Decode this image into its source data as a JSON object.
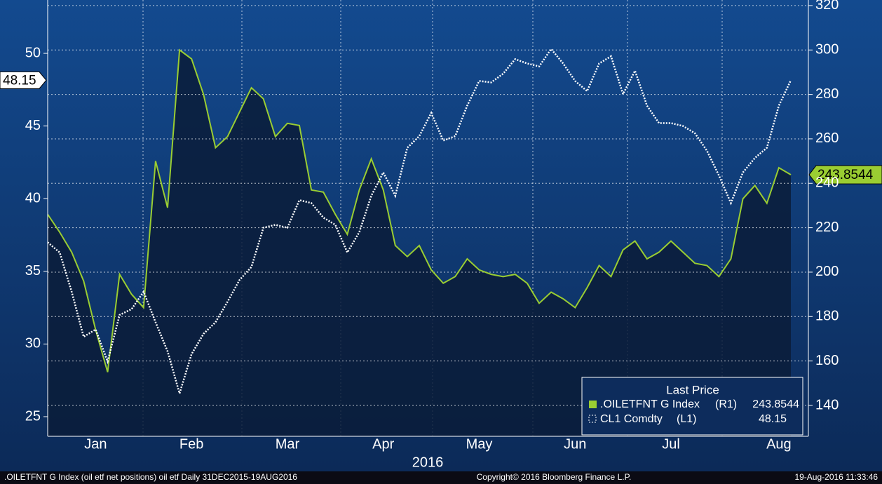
{
  "chart_data": {
    "type": "line",
    "x_label": "2016",
    "categories": [
      null,
      null,
      null,
      null,
      "Jan",
      null,
      null,
      null,
      null,
      null,
      null,
      null,
      "Feb",
      null,
      null,
      null,
      null,
      null,
      null,
      null,
      "Mar",
      null,
      null,
      null,
      null,
      null,
      null,
      null,
      "Apr",
      null,
      null,
      null,
      null,
      null,
      null,
      null,
      "May",
      null,
      null,
      null,
      null,
      null,
      null,
      null,
      "Jun",
      null,
      null,
      null,
      null,
      null,
      null,
      null,
      "Jul",
      null,
      null,
      null,
      null,
      null,
      null,
      null,
      null,
      "Aug",
      null
    ],
    "series": [
      {
        "name": "CL1 Comdty",
        "tag": "(L1)",
        "color": "#ffffff",
        "axis": "y",
        "values": [
          37.0,
          36.3,
          33.6,
          30.5,
          31.0,
          28.8,
          32.0,
          32.4,
          33.6,
          31.5,
          29.5,
          26.6,
          29.3,
          30.7,
          31.5,
          32.9,
          34.4,
          35.3,
          38.0,
          38.2,
          38.0,
          39.9,
          39.7,
          38.7,
          38.2,
          36.3,
          37.7,
          40.2,
          41.8,
          40.2,
          43.5,
          44.3,
          45.9,
          44.0,
          44.3,
          46.4,
          48.1,
          48.0,
          48.6,
          49.6,
          49.3,
          49.1,
          50.3,
          49.3,
          48.1,
          47.4,
          49.3,
          49.8,
          47.2,
          48.8,
          46.4,
          45.2,
          45.2,
          45.0,
          44.5,
          43.3,
          41.6,
          39.7,
          41.8,
          42.8,
          43.5,
          46.4,
          48.15
        ]
      },
      {
        "name": ".OILETFNT G Index",
        "tag": "(R1)",
        "color": "#9acd32",
        "axis": "y2",
        "values": [
          226,
          218,
          209,
          196,
          174,
          155,
          199,
          190,
          184,
          250,
          229,
          300,
          296,
          280,
          256,
          261,
          272,
          283,
          278,
          261,
          267,
          266,
          237,
          236,
          226,
          217,
          237,
          251,
          237,
          212,
          207,
          212,
          201,
          195,
          198,
          206,
          201,
          199,
          198,
          199,
          195,
          186,
          191,
          188,
          184,
          193,
          203,
          198,
          210,
          214,
          206,
          209,
          214,
          209,
          204,
          203,
          198,
          206,
          233,
          239,
          231,
          247,
          243.8544
        ]
      }
    ],
    "ylim": [
      23.65,
      53.67
    ],
    "yticks": [
      25,
      30,
      35,
      40,
      45,
      50
    ],
    "y2lim": [
      126.1,
      322.5
    ],
    "y2ticks": [
      140,
      160,
      180,
      200,
      220,
      240,
      260,
      280,
      300,
      320
    ],
    "grid": true,
    "legend": {
      "title": "Last Price",
      "position": "lower right"
    },
    "footer": {
      "left": ".OILETFNT G Index (oil etf net positions) oil etf  Daily 31DEC2015-19AUG2016",
      "center": "Copyright© 2016 Bloomberg Finance L.P.",
      "right": "19-Aug-2016 11:33:46"
    }
  }
}
